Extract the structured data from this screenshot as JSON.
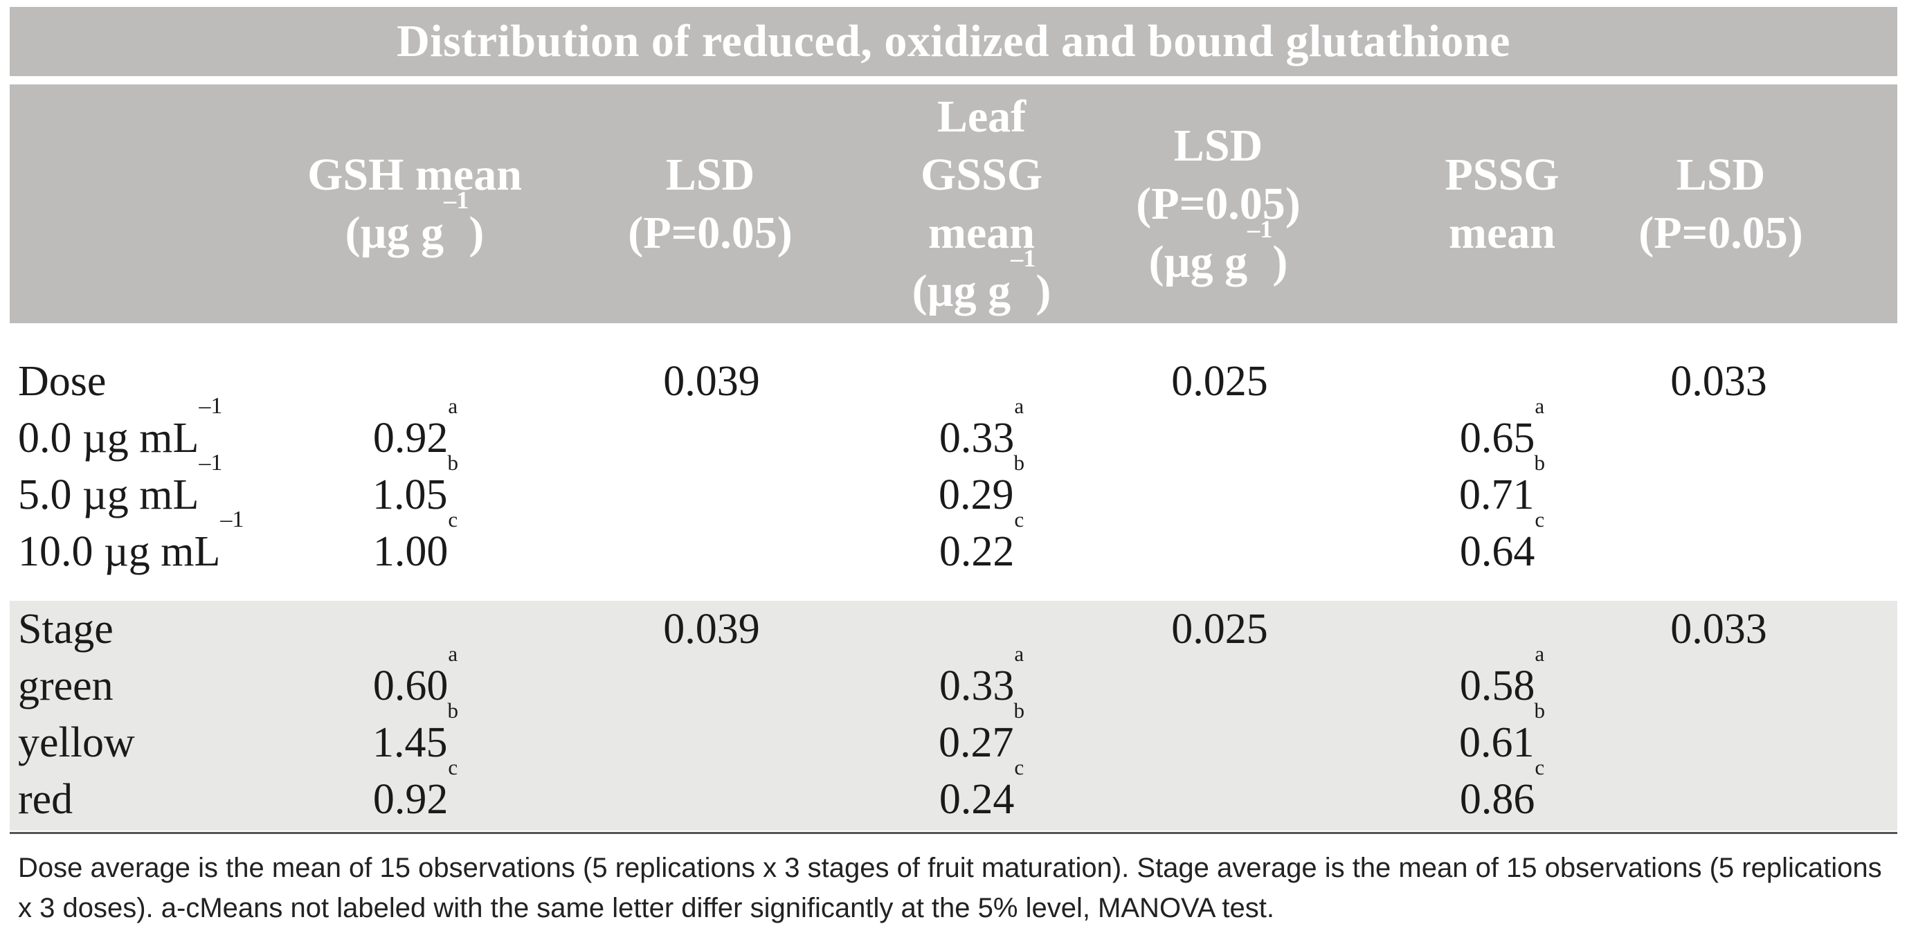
{
  "title": "Distribution of reduced, oxidized and bound glutathione",
  "columns": [
    {
      "lines": [
        "GSH mean",
        "(µg g"
      ],
      "sup": "–1",
      "tail": ")"
    },
    {
      "lines": [
        "LSD",
        "(P=0.05)"
      ]
    },
    {
      "lines": [
        "Leaf",
        "GSSG",
        "mean",
        "(µg g"
      ],
      "sup": "–1",
      "tail": ")"
    },
    {
      "lines": [
        "LSD",
        "(P=0.05)",
        "(µg g"
      ],
      "sup": "–1",
      "tail": ")"
    },
    {
      "lines": [
        "PSSG",
        "mean"
      ]
    },
    {
      "lines": [
        "LSD",
        "(P=0.05)"
      ]
    }
  ],
  "header": {
    "c1_l1": "GSH mean",
    "c1_l2": "(µg g",
    "c1_sup": "–1",
    "c1_tail": ")",
    "c2_l1": "LSD",
    "c2_l2": "(P=0.05)",
    "c3_l1": "Leaf",
    "c3_l2": "GSSG",
    "c3_l3": "mean",
    "c3_l4": "(µg g",
    "c3_sup": "–1",
    "c3_tail": ")",
    "c4_l1": "LSD",
    "c4_l2": "(P=0.05)",
    "c4_l3": "(µg g",
    "c4_sup": "–1",
    "c4_tail": ")",
    "c5_l1": "PSSG",
    "c5_l2": "mean",
    "c6_l1": "LSD",
    "c6_l2": "(P=0.05)"
  },
  "dose": {
    "label": "Dose",
    "lsd_gsh": "0.039",
    "lsd_gssg": "0.025",
    "lsd_pssg": "0.033",
    "rows": [
      {
        "label": "0.0  µg mL",
        "sup": "–1",
        "gsh": "0.92",
        "gsh_l": "a",
        "gssg": "0.33",
        "gssg_l": "a",
        "pssg": "0.65",
        "pssg_l": "a"
      },
      {
        "label": "5.0  µg mL",
        "sup": "–1",
        "gsh": "1.05",
        "gsh_l": "b",
        "gssg": "0.29",
        "gssg_l": "b",
        "pssg": "0.71",
        "pssg_l": "b"
      },
      {
        "label": "10.0 µg mL",
        "sup": "–1",
        "gsh": "1.00",
        "gsh_l": "c",
        "gssg": "0.22",
        "gssg_l": "c",
        "pssg": "0.64",
        "pssg_l": "c"
      }
    ]
  },
  "stage": {
    "label": "Stage",
    "lsd_gsh": "0.039",
    "lsd_gssg": "0.025",
    "lsd_pssg": "0.033",
    "rows": [
      {
        "label": "green",
        "gsh": "0.60",
        "gsh_l": "a",
        "gssg": "0.33",
        "gssg_l": "a",
        "pssg": "0.58",
        "pssg_l": "a"
      },
      {
        "label": "yellow",
        "gsh": "1.45",
        "gsh_l": "b",
        "gssg": "0.27",
        "gssg_l": "b",
        "pssg": "0.61",
        "pssg_l": "b"
      },
      {
        "label": "red",
        "gsh": "0.92",
        "gsh_l": "c",
        "gssg": "0.24",
        "gssg_l": "c",
        "pssg": "0.86",
        "pssg_l": "c"
      }
    ]
  },
  "footnote": "Dose average is the mean of 15 observations (5 replications x 3 stages of fruit maturation). Stage average is the mean of 15 observations (5 replications x 3 doses). a-cMeans not labeled with the same letter differ significantly at the 5% level, MANOVA test.",
  "colors": {
    "header_bg": "#bdbcbb",
    "header_text": "#ffffff",
    "stage_bg": "#e8e8e7",
    "body_text": "#1a1a1a"
  }
}
